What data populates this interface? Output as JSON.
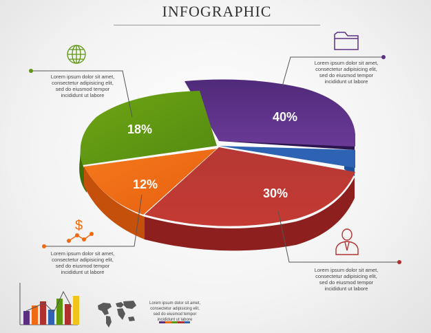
{
  "title": "INFOGRAPHIC",
  "chart_data": {
    "type": "pie",
    "values": [
      40,
      30,
      12,
      18
    ],
    "labels": [
      "40%",
      "30%",
      "12%",
      "18%"
    ],
    "slice_colors": [
      "#5a2f82",
      "#b0302e",
      "#ef6a12",
      "#5c960f"
    ],
    "unlabeled_wedge_color": "#2e63b4"
  },
  "callouts": {
    "top_right": "Lorem ipsum dolor sit amet,\nconsectetur adipisicing elit,\nsed do eiusmod tempor\nincididunt ut labore",
    "top_left": "Lorem ipsum dolor sit amet,\nconsectetur adipisicing elit,\nsed do eiusmod tempor\nincididunt ut labore",
    "bottom_left": "Lorem ipsum dolor sit amet,\nconsectetur adipisicing elit,\nsed do eiusmod tempor\nincididunt ut labore",
    "bottom_right": "Lorem ipsum dolor sit amet,\nconsectetur adipisicing elit,\nsed do eiusmod tempor\nincididunt ut labore",
    "footer": "Lorem ipsum dolor sit amet,\nconsectetur adipisicing elit,\nsed do eiusmod tempor\nincididunt ut labore"
  },
  "icons": [
    "folder-icon",
    "globe-icon",
    "dollar-icon",
    "person-icon",
    "mini-bar-chart-icon",
    "world-map-icon"
  ],
  "accent_colors": [
    "#5a2f82",
    "#ef6a12",
    "#5c960f",
    "#b0302e",
    "#2e63b4"
  ],
  "mini_bar_chart": {
    "values": [
      20,
      28,
      34,
      22,
      38,
      30,
      42
    ],
    "colors": [
      "#5a2f82",
      "#ef6a12",
      "#b0302e",
      "#2e63b4",
      "#5c960f",
      "#b0302e",
      "#f0c419"
    ]
  }
}
